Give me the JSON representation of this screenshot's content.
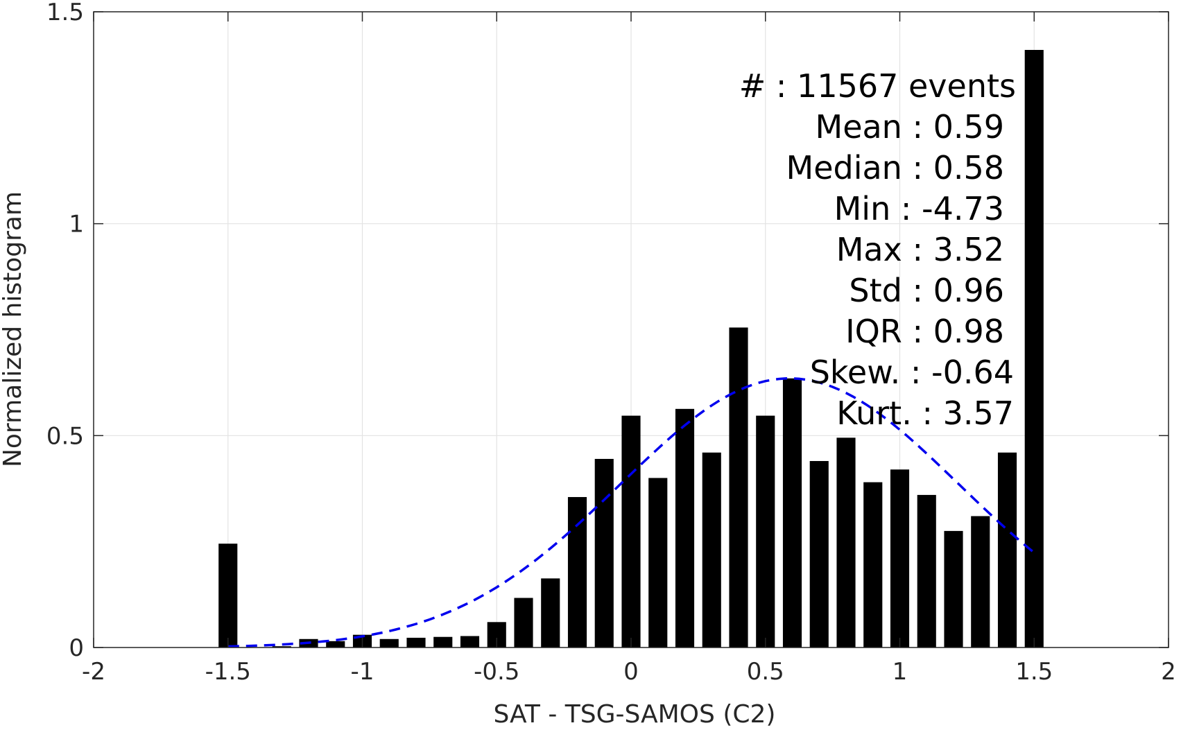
{
  "chart_data": {
    "type": "bar",
    "title": "",
    "xlabel": "SAT - TSG-SAMOS (C2)",
    "ylabel": "Normalized histogram",
    "xlim": [
      -2,
      2
    ],
    "ylim": [
      0,
      1.5
    ],
    "xticks": [
      -2,
      -1.5,
      -1,
      -0.5,
      0,
      0.5,
      1,
      1.5,
      2
    ],
    "xtick_labels": [
      "-2",
      "-1.5",
      "-1",
      "-0.5",
      "0",
      "0.5",
      "1",
      "1.5",
      "2"
    ],
    "yticks": [
      0,
      0.5,
      1,
      1.5
    ],
    "ytick_labels": [
      "0",
      "0.5",
      "1",
      "1.5"
    ],
    "grid": true,
    "bar_width": 0.07,
    "bar_color": "#000000",
    "bars": [
      {
        "x": -1.5,
        "y": 0.245
      },
      {
        "x": -1.4,
        "y": 0.0
      },
      {
        "x": -1.3,
        "y": 0.003
      },
      {
        "x": -1.2,
        "y": 0.02
      },
      {
        "x": -1.1,
        "y": 0.015
      },
      {
        "x": -1.0,
        "y": 0.03
      },
      {
        "x": -0.9,
        "y": 0.02
      },
      {
        "x": -0.8,
        "y": 0.023
      },
      {
        "x": -0.7,
        "y": 0.025
      },
      {
        "x": -0.6,
        "y": 0.027
      },
      {
        "x": -0.5,
        "y": 0.06
      },
      {
        "x": -0.4,
        "y": 0.117
      },
      {
        "x": -0.3,
        "y": 0.163
      },
      {
        "x": -0.2,
        "y": 0.355
      },
      {
        "x": -0.1,
        "y": 0.445
      },
      {
        "x": 0.0,
        "y": 0.547
      },
      {
        "x": 0.1,
        "y": 0.4
      },
      {
        "x": 0.2,
        "y": 0.563
      },
      {
        "x": 0.3,
        "y": 0.46
      },
      {
        "x": 0.4,
        "y": 0.755
      },
      {
        "x": 0.5,
        "y": 0.547
      },
      {
        "x": 0.6,
        "y": 0.635
      },
      {
        "x": 0.7,
        "y": 0.44
      },
      {
        "x": 0.8,
        "y": 0.495
      },
      {
        "x": 0.9,
        "y": 0.39
      },
      {
        "x": 1.0,
        "y": 0.42
      },
      {
        "x": 1.1,
        "y": 0.36
      },
      {
        "x": 1.2,
        "y": 0.275
      },
      {
        "x": 1.3,
        "y": 0.31
      },
      {
        "x": 1.4,
        "y": 0.46
      },
      {
        "x": 1.5,
        "y": 1.41
      }
    ],
    "fit_curve": {
      "style": "dashed",
      "color": "#0000ee",
      "mean": 0.59,
      "std": 0.63,
      "peak": 0.635,
      "x_range": [
        -1.5,
        1.5
      ]
    },
    "annotations": [
      {
        "label": "#  ",
        "value": ": 11567 events"
      },
      {
        "label": "Mean ",
        "value": ": 0.59"
      },
      {
        "label": "Median ",
        "value": ": 0.58"
      },
      {
        "label": "Min ",
        "value": ": -4.73"
      },
      {
        "label": "Max ",
        "value": ": 3.52"
      },
      {
        "label": "Std ",
        "value": ": 0.96"
      },
      {
        "label": "IQR ",
        "value": ": 0.98"
      },
      {
        "label": "Skew. ",
        "value": ": -0.64"
      },
      {
        "label": "Kurt. ",
        "value": ": 3.57"
      }
    ]
  }
}
